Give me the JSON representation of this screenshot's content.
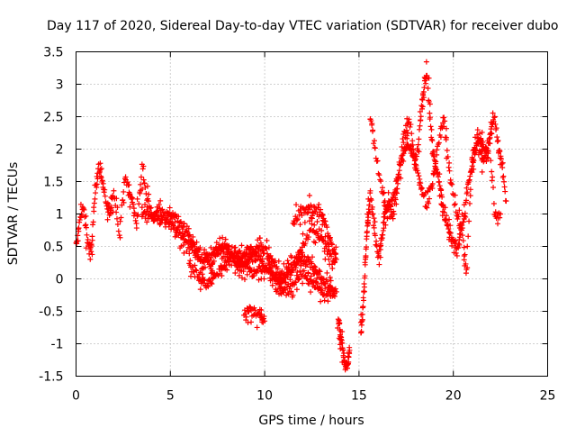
{
  "chart_data": {
    "type": "scatter",
    "title": "Day 117 of 2020, Sidereal Day-to-day VTEC variation (SDTVAR) for receiver dubo",
    "xlabel": "GPS time / hours",
    "ylabel": "SDTVAR / TECUs",
    "xlim": [
      0,
      25
    ],
    "ylim": [
      -1.5,
      3.5
    ],
    "xticks": [
      "0",
      "5",
      "10",
      "15",
      "20",
      "25"
    ],
    "yticks": [
      "-1.5",
      "-1",
      "-0.5",
      "0",
      "0.5",
      "1",
      "1.5",
      "2",
      "2.5",
      "3",
      "3.5"
    ],
    "grid": true,
    "marker": "plus",
    "series": [
      {
        "name": "SDTVAR",
        "color": "#ff0000",
        "traces": [
          {
            "x": [
              0.0,
              0.2,
              0.4,
              0.6,
              0.8,
              1.0,
              1.2,
              1.4,
              1.6,
              1.8,
              2.0,
              2.3,
              2.6,
              2.9,
              3.2,
              3.5,
              3.8,
              4.1,
              4.4,
              4.7,
              5.0,
              5.3,
              5.6,
              5.9,
              6.2,
              6.5,
              6.8,
              7.1,
              7.4,
              7.7,
              8.0,
              8.3,
              8.6,
              8.9,
              9.2,
              9.5,
              9.8,
              10.1,
              10.4,
              10.7,
              11.0,
              11.3,
              11.6,
              11.9,
              12.2,
              12.5,
              12.8,
              13.1,
              13.4,
              13.7
            ],
            "y": [
              0.5,
              0.9,
              1.1,
              0.6,
              0.4,
              1.3,
              1.7,
              1.5,
              1.2,
              1.0,
              1.3,
              0.7,
              1.6,
              1.3,
              0.8,
              1.7,
              1.2,
              0.9,
              1.1,
              0.9,
              0.9,
              0.8,
              0.6,
              0.5,
              0.45,
              0.3,
              0.2,
              0.25,
              0.35,
              0.5,
              0.45,
              0.3,
              0.25,
              0.35,
              0.5,
              0.4,
              0.3,
              0.15,
              0.05,
              -0.05,
              0.0,
              0.1,
              0.2,
              0.4,
              0.6,
              0.8,
              0.7,
              0.6,
              0.35,
              0.25
            ]
          },
          {
            "x": [
              3.5,
              3.8,
              4.1,
              4.4,
              4.7,
              5.0,
              5.3,
              5.6,
              5.9,
              6.2,
              6.5,
              6.8,
              7.1,
              7.4,
              7.7,
              8.0,
              8.3,
              8.6,
              8.9,
              9.2,
              9.5,
              9.8,
              10.1,
              10.4,
              10.7,
              11.0,
              11.3,
              11.6,
              11.9,
              12.2,
              12.5,
              12.8,
              13.1,
              13.4,
              13.7
            ],
            "y": [
              1.0,
              1.0,
              0.95,
              0.9,
              0.95,
              1.0,
              0.95,
              0.85,
              0.7,
              0.55,
              0.4,
              0.3,
              0.35,
              0.45,
              0.55,
              0.5,
              0.35,
              0.2,
              0.15,
              0.3,
              0.45,
              0.5,
              0.4,
              0.25,
              0.1,
              0.05,
              0.15,
              0.25,
              0.35,
              0.3,
              0.2,
              0.1,
              0.0,
              -0.1,
              -0.2
            ]
          },
          {
            "x": [
              6.0,
              6.3,
              6.6,
              6.9,
              7.2,
              7.5,
              7.8,
              8.1,
              8.4,
              8.7,
              9.0,
              9.3,
              9.6,
              9.9,
              10.2,
              10.5,
              10.8,
              11.1,
              11.4,
              11.7,
              12.0,
              12.3,
              12.6,
              12.9,
              13.2,
              13.5,
              13.8
            ],
            "y": [
              0.2,
              0.1,
              0.0,
              -0.1,
              -0.05,
              0.1,
              0.2,
              0.3,
              0.4,
              0.35,
              0.2,
              0.1,
              0.15,
              0.2,
              0.1,
              0.0,
              -0.1,
              -0.2,
              -0.15,
              0.0,
              0.1,
              0.0,
              -0.1,
              -0.15,
              -0.2,
              -0.2,
              -0.2
            ]
          },
          {
            "x": [
              11.5,
              11.8,
              12.1,
              12.4,
              12.7,
              13.0,
              13.3,
              13.6,
              13.8
            ],
            "y": [
              0.9,
              1.0,
              1.05,
              1.1,
              1.05,
              1.0,
              0.8,
              0.5,
              0.3
            ]
          },
          {
            "x": [
              8.9,
              9.2,
              9.5,
              9.8,
              10.0
            ],
            "y": [
              -0.55,
              -0.5,
              -0.55,
              -0.6,
              -0.65
            ]
          },
          {
            "x": [
              13.9,
              14.0,
              14.1,
              14.2,
              14.3,
              14.4,
              14.5
            ],
            "y": [
              -0.6,
              -0.8,
              -1.0,
              -1.2,
              -1.4,
              -1.3,
              -1.1
            ]
          },
          {
            "x": [
              15.1,
              15.2,
              15.3,
              15.4,
              15.5,
              15.6,
              15.8,
              16.0,
              16.2,
              16.4,
              16.6,
              16.8,
              17.0,
              17.2,
              17.4,
              17.6,
              17.8,
              18.0,
              18.2,
              18.4,
              18.6,
              18.8,
              19.0,
              19.2,
              19.4,
              19.6,
              19.8,
              20.0,
              20.2,
              20.4,
              20.6,
              20.8,
              21.0,
              21.2,
              21.4,
              21.6,
              21.8,
              22.0,
              22.2,
              22.4,
              22.6,
              22.8
            ],
            "y": [
              -0.9,
              -0.5,
              0.0,
              0.6,
              1.0,
              1.3,
              0.8,
              0.3,
              0.6,
              1.0,
              1.2,
              0.9,
              1.4,
              1.8,
              2.0,
              2.1,
              2.0,
              1.7,
              2.3,
              2.9,
              3.2,
              2.3,
              1.8,
              1.6,
              1.2,
              0.9,
              0.7,
              0.6,
              0.4,
              0.7,
              1.0,
              1.5,
              1.8,
              2.0,
              2.2,
              2.0,
              1.9,
              2.3,
              2.5,
              2.0,
              1.7,
              1.2
            ]
          },
          {
            "x": [
              15.6,
              15.9,
              16.2,
              16.5,
              16.8,
              17.1,
              17.4,
              17.7,
              18.0,
              18.3,
              18.6,
              18.9,
              19.2,
              19.5,
              19.8,
              20.1,
              20.4,
              20.7,
              21.0,
              21.3,
              21.6,
              21.9,
              22.2,
              22.5
            ],
            "y": [
              2.5,
              1.9,
              1.4,
              1.0,
              1.3,
              1.6,
              2.3,
              2.4,
              1.8,
              1.4,
              1.1,
              1.5,
              2.1,
              2.5,
              1.6,
              1.1,
              0.8,
              0.2,
              1.9,
              2.1,
              1.8,
              2.2,
              1.0,
              1.0
            ]
          }
        ]
      }
    ]
  }
}
